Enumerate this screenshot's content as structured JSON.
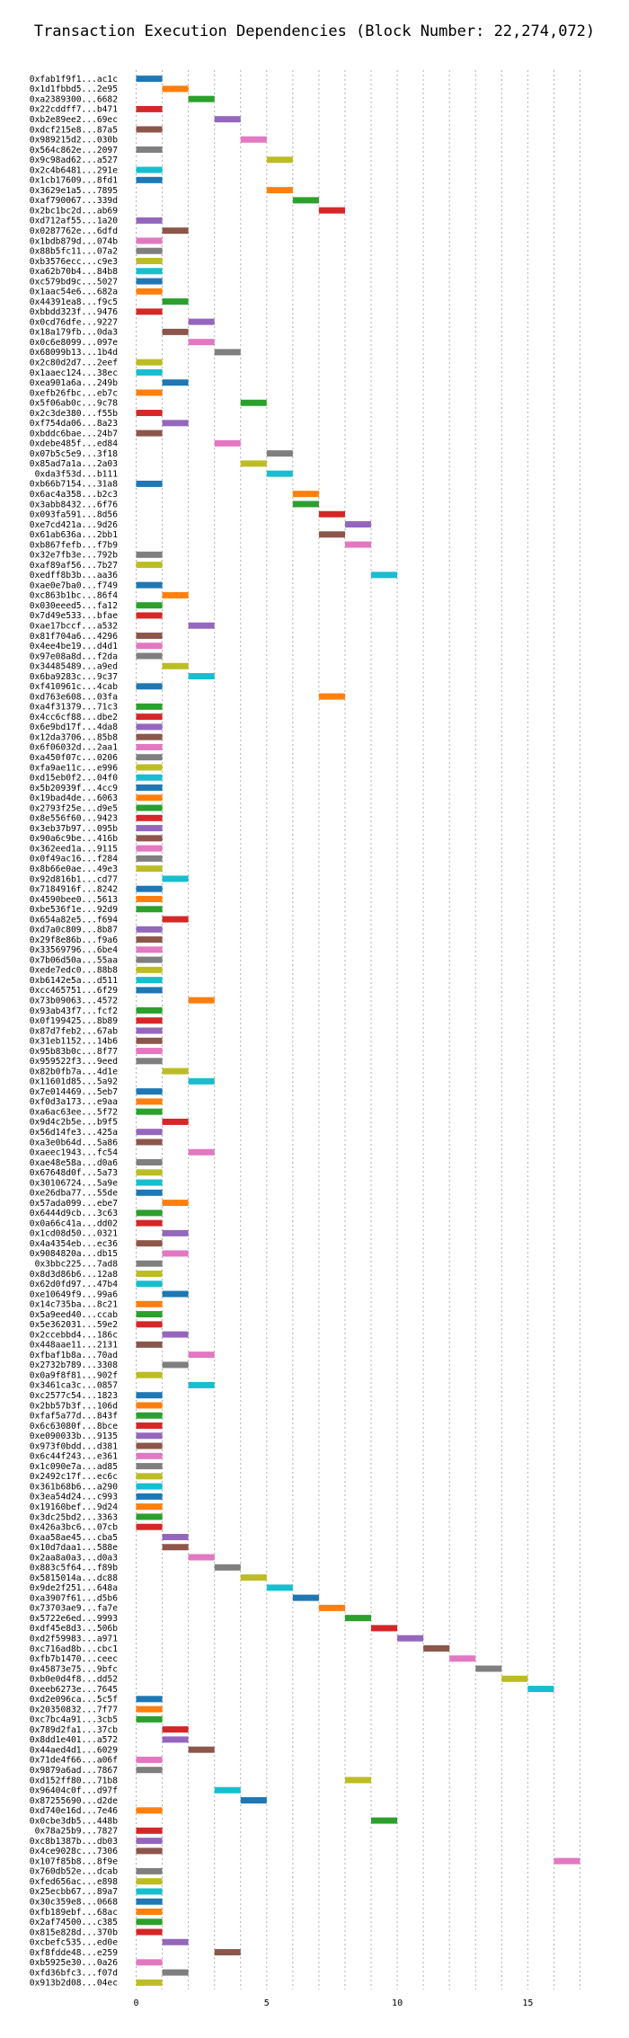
{
  "chart_data": {
    "type": "bar",
    "title": "Transaction Execution Dependencies (Block Number: 22,274,072)",
    "xlabel": "",
    "ylabel": "",
    "xlim": [
      -0.5,
      17.5
    ],
    "xticks": [
      0,
      5,
      10,
      15
    ],
    "grid": true,
    "palette": [
      "#1f77b4",
      "#ff7f0e",
      "#2ca02c",
      "#d62728",
      "#9467bd",
      "#8c564b",
      "#e377c2",
      "#7f7f7f",
      "#bcbd22",
      "#17becf"
    ],
    "transactions": [
      {
        "label": "0xfab1f9f1...ac1c",
        "start": 0
      },
      {
        "label": "0x1d1fbbd5...2e95",
        "start": 1
      },
      {
        "label": "0xa2389300...6682",
        "start": 2
      },
      {
        "label": "0x22cddff7...b471",
        "start": 0
      },
      {
        "label": "0xb2e89ee2...69ec",
        "start": 3
      },
      {
        "label": "0xdcf215e8...87a5",
        "start": 0
      },
      {
        "label": "0x989215d2...030b",
        "start": 4
      },
      {
        "label": "0x564c862e...2097",
        "start": 0
      },
      {
        "label": "0x9c98ad62...a527",
        "start": 5
      },
      {
        "label": "0x2c4b6481...291e",
        "start": 0
      },
      {
        "label": "0x1cb17609...8fd1",
        "start": 0
      },
      {
        "label": "0x3629e1a5...7895",
        "start": 5
      },
      {
        "label": "0xaf790067...339d",
        "start": 6
      },
      {
        "label": "0x2bc1bc2d...ab69",
        "start": 7
      },
      {
        "label": "0xd712af55...1a20",
        "start": 0
      },
      {
        "label": "0x0287762e...6dfd",
        "start": 1
      },
      {
        "label": "0x1bdb879d...074b",
        "start": 0
      },
      {
        "label": "0x88b5fc11...07a2",
        "start": 0
      },
      {
        "label": "0xb3576ecc...c9e3",
        "start": 0
      },
      {
        "label": "0xa62b70b4...84b8",
        "start": 0
      },
      {
        "label": "0xc579bd9c...5027",
        "start": 0
      },
      {
        "label": "0x1aac54e6...682a",
        "start": 0
      },
      {
        "label": "0x44391ea8...f9c5",
        "start": 1
      },
      {
        "label": "0xbbdd323f...9476",
        "start": 0
      },
      {
        "label": "0x0cd76dfe...9227",
        "start": 2
      },
      {
        "label": "0x18a179fb...0da3",
        "start": 1
      },
      {
        "label": "0x0c6e8099...097e",
        "start": 2
      },
      {
        "label": "0x68099b13...1b4d",
        "start": 3
      },
      {
        "label": "0x2c80d2d7...2eef",
        "start": 0
      },
      {
        "label": "0x1aaec124...38ec",
        "start": 0
      },
      {
        "label": "0xea901a6a...249b",
        "start": 1
      },
      {
        "label": "0xefb26fbc...eb7c",
        "start": 0
      },
      {
        "label": "0x5f06ab0c...9c78",
        "start": 4
      },
      {
        "label": "0x2c3de380...f55b",
        "start": 0
      },
      {
        "label": "0xf754da06...8a23",
        "start": 1
      },
      {
        "label": "0xbddc6bae...24b7",
        "start": 0
      },
      {
        "label": "0xdebe485f...ed84",
        "start": 3
      },
      {
        "label": "0x07b5c5e9...3f18",
        "start": 5
      },
      {
        "label": "0x85ad7a1a...2a03",
        "start": 4
      },
      {
        "label": "0xda3f53d...b111",
        "start": 5
      },
      {
        "label": "0xb66b7154...31a8",
        "start": 0
      },
      {
        "label": "0x6ac4a358...b2c3",
        "start": 6
      },
      {
        "label": "0x3abb8432...6f76",
        "start": 6
      },
      {
        "label": "0x093fa591...8d56",
        "start": 7
      },
      {
        "label": "0xe7cd421a...9d26",
        "start": 8
      },
      {
        "label": "0x61ab636a...2bb1",
        "start": 7
      },
      {
        "label": "0xb867fefb...f7b9",
        "start": 8
      },
      {
        "label": "0x32e7fb3e...792b",
        "start": 0
      },
      {
        "label": "0xaf89af56...7b27",
        "start": 0
      },
      {
        "label": "0xedff8b3b...aa36",
        "start": 9
      },
      {
        "label": "0xae0e7ba0...f749",
        "start": 0
      },
      {
        "label": "0xc863b1bc...86f4",
        "start": 1
      },
      {
        "label": "0x030eeed5...fa12",
        "start": 0
      },
      {
        "label": "0x7d49e533...bfae",
        "start": 0
      },
      {
        "label": "0xae17bccf...a532",
        "start": 2
      },
      {
        "label": "0x81f704a6...4296",
        "start": 0
      },
      {
        "label": "0x4ee4be19...d4d1",
        "start": 0
      },
      {
        "label": "0x97e08a8d...f2da",
        "start": 0
      },
      {
        "label": "0x34485489...a9ed",
        "start": 1
      },
      {
        "label": "0x6ba9283c...9c37",
        "start": 2
      },
      {
        "label": "0xf410961c...4cab",
        "start": 0
      },
      {
        "label": "0xd763e608...03fa",
        "start": 7
      },
      {
        "label": "0xa4f31379...71c3",
        "start": 0
      },
      {
        "label": "0x4cc6cf88...dbe2",
        "start": 0
      },
      {
        "label": "0x6e9bd17f...4da8",
        "start": 0
      },
      {
        "label": "0x12da3706...85b8",
        "start": 0
      },
      {
        "label": "0x6f06032d...2aa1",
        "start": 0
      },
      {
        "label": "0xa450f07c...0206",
        "start": 0
      },
      {
        "label": "0xfa9ae11c...e996",
        "start": 0
      },
      {
        "label": "0xd15eb0f2...04f0",
        "start": 0
      },
      {
        "label": "0x5b20939f...4cc9",
        "start": 0
      },
      {
        "label": "0x19bad4de...6063",
        "start": 0
      },
      {
        "label": "0x2793f25e...d9e5",
        "start": 0
      },
      {
        "label": "0x8e556f60...9423",
        "start": 0
      },
      {
        "label": "0x3eb37b97...095b",
        "start": 0
      },
      {
        "label": "0x90a6c9be...416b",
        "start": 0
      },
      {
        "label": "0x362eed1a...9115",
        "start": 0
      },
      {
        "label": "0x0f49ac16...f284",
        "start": 0
      },
      {
        "label": "0x8b66e0ae...49e3",
        "start": 0
      },
      {
        "label": "0x92d816b1...cd77",
        "start": 1
      },
      {
        "label": "0x7184916f...8242",
        "start": 0
      },
      {
        "label": "0x4590bee0...5613",
        "start": 0
      },
      {
        "label": "0xbe536f1e...92d9",
        "start": 0
      },
      {
        "label": "0x654a82e5...f694",
        "start": 1
      },
      {
        "label": "0xd7a0c809...8b87",
        "start": 0
      },
      {
        "label": "0x29f8e86b...f9a6",
        "start": 0
      },
      {
        "label": "0x33569796...6be4",
        "start": 0
      },
      {
        "label": "0x7b06d50a...55aa",
        "start": 0
      },
      {
        "label": "0xede7edc0...88b8",
        "start": 0
      },
      {
        "label": "0xb6142e5a...d511",
        "start": 0
      },
      {
        "label": "0xcc465751...6f29",
        "start": 0
      },
      {
        "label": "0x73b09063...4572",
        "start": 2
      },
      {
        "label": "0x93ab43f7...fcf2",
        "start": 0
      },
      {
        "label": "0x0f199425...8b89",
        "start": 0
      },
      {
        "label": "0x87d7feb2...67ab",
        "start": 0
      },
      {
        "label": "0x31eb1152...14b6",
        "start": 0
      },
      {
        "label": "0x95b83b0c...8f77",
        "start": 0
      },
      {
        "label": "0x959522f3...9eed",
        "start": 0
      },
      {
        "label": "0x82b0fb7a...4d1e",
        "start": 1
      },
      {
        "label": "0x11601d85...5a92",
        "start": 2
      },
      {
        "label": "0x7e014469...5eb7",
        "start": 0
      },
      {
        "label": "0xf0d3a173...e9aa",
        "start": 0
      },
      {
        "label": "0xa6ac63ee...5f72",
        "start": 0
      },
      {
        "label": "0x9d4c2b5e...b9f5",
        "start": 1
      },
      {
        "label": "0x56d14fe3...425a",
        "start": 0
      },
      {
        "label": "0xa3e0b64d...5a86",
        "start": 0
      },
      {
        "label": "0xaeec1943...fc54",
        "start": 2
      },
      {
        "label": "0xae48e58a...d0a6",
        "start": 0
      },
      {
        "label": "0x67648d0f...5a73",
        "start": 0
      },
      {
        "label": "0x30106724...5a9e",
        "start": 0
      },
      {
        "label": "0xe26dba77...55de",
        "start": 0
      },
      {
        "label": "0x57ada099...ebe7",
        "start": 1
      },
      {
        "label": "0x6444d9cb...3c63",
        "start": 0
      },
      {
        "label": "0x0a66c41a...dd02",
        "start": 0
      },
      {
        "label": "0x1cd08d50...0321",
        "start": 1
      },
      {
        "label": "0x4a4354eb...ec36",
        "start": 0
      },
      {
        "label": "0x9084820a...db15",
        "start": 1
      },
      {
        "label": "0x3bbc225...7ad8",
        "start": 0
      },
      {
        "label": "0x8d3d86b6...12a8",
        "start": 0
      },
      {
        "label": "0x62d0fd97...47b4",
        "start": 0
      },
      {
        "label": "0xe10649f9...99a6",
        "start": 1
      },
      {
        "label": "0x14c735ba...8c21",
        "start": 0
      },
      {
        "label": "0x5a9eed40...ccab",
        "start": 0
      },
      {
        "label": "0x5e362031...59e2",
        "start": 0
      },
      {
        "label": "0x2ccebbd4...186c",
        "start": 1
      },
      {
        "label": "0x448aae11...2131",
        "start": 0
      },
      {
        "label": "0xfbaf1b8a...70ad",
        "start": 2
      },
      {
        "label": "0x2732b789...3308",
        "start": 1
      },
      {
        "label": "0x0a9f8f81...902f",
        "start": 0
      },
      {
        "label": "0x3461ca3c...0857",
        "start": 2
      },
      {
        "label": "0xc2577c54...1823",
        "start": 0
      },
      {
        "label": "0x2bb57b3f...106d",
        "start": 0
      },
      {
        "label": "0xfaf5a77d...843f",
        "start": 0
      },
      {
        "label": "0x6c63080f...8bce",
        "start": 0
      },
      {
        "label": "0xe090033b...9135",
        "start": 0
      },
      {
        "label": "0x973f0bdd...d381",
        "start": 0
      },
      {
        "label": "0x6c44f243...e361",
        "start": 0
      },
      {
        "label": "0x1c090e7a...ad85",
        "start": 0
      },
      {
        "label": "0x2492c17f...ec6c",
        "start": 0
      },
      {
        "label": "0x361b68b6...a290",
        "start": 0
      },
      {
        "label": "0x3ea54d24...c993",
        "start": 0
      },
      {
        "label": "0x19160bef...9d24",
        "start": 0
      },
      {
        "label": "0x3dc25bd2...3363",
        "start": 0
      },
      {
        "label": "0x426a3bc6...07cb",
        "start": 0
      },
      {
        "label": "0xaa58ae45...cba5",
        "start": 1
      },
      {
        "label": "0x10d7daa1...588e",
        "start": 1
      },
      {
        "label": "0x2aa8a0a3...d0a3",
        "start": 2
      },
      {
        "label": "0x883c5f64...f89b",
        "start": 3
      },
      {
        "label": "0x5815014a...dc88",
        "start": 4
      },
      {
        "label": "0x9de2f251...648a",
        "start": 5
      },
      {
        "label": "0xa3907f61...d5b6",
        "start": 6
      },
      {
        "label": "0x73703ae9...fa7e",
        "start": 7
      },
      {
        "label": "0x5722e6ed...9993",
        "start": 8
      },
      {
        "label": "0xdf45e8d3...506b",
        "start": 9
      },
      {
        "label": "0xd2f59983...a971",
        "start": 10
      },
      {
        "label": "0xc716ad8b...cbc1",
        "start": 11
      },
      {
        "label": "0xfb7b1470...ceec",
        "start": 12
      },
      {
        "label": "0x45873e75...9bfc",
        "start": 13
      },
      {
        "label": "0xb0e0d4f8...dd52",
        "start": 14
      },
      {
        "label": "0xeeb6273e...7645",
        "start": 15
      },
      {
        "label": "0xd2e096ca...5c5f",
        "start": 0
      },
      {
        "label": "0x20350832...7f77",
        "start": 0
      },
      {
        "label": "0xc7bc4a91...3cb5",
        "start": 0
      },
      {
        "label": "0x789d2fa1...37cb",
        "start": 1
      },
      {
        "label": "0x8dd1e401...a572",
        "start": 1
      },
      {
        "label": "0x44aed4d1...6029",
        "start": 2
      },
      {
        "label": "0x71de4f66...a06f",
        "start": 0
      },
      {
        "label": "0x9879a6ad...7867",
        "start": 0
      },
      {
        "label": "0xd152ff80...71b8",
        "start": 8
      },
      {
        "label": "0x96404c0f...d97f",
        "start": 3
      },
      {
        "label": "0x87255690...d2de",
        "start": 4
      },
      {
        "label": "0xd740e16d...7e46",
        "start": 0
      },
      {
        "label": "0x0cbe3db5...448b",
        "start": 9
      },
      {
        "label": "0x78a25b9...7827",
        "start": 0
      },
      {
        "label": "0xc8b1387b...db03",
        "start": 0
      },
      {
        "label": "0x4ce9028c...7306",
        "start": 0
      },
      {
        "label": "0x107f85b8...8f9e",
        "start": 16
      },
      {
        "label": "0x760db52e...dcab",
        "start": 0
      },
      {
        "label": "0xfed656ac...e898",
        "start": 0
      },
      {
        "label": "0x25ecbb67...89a7",
        "start": 0
      },
      {
        "label": "0x30c359e8...0668",
        "start": 0
      },
      {
        "label": "0xfb189ebf...68ac",
        "start": 0
      },
      {
        "label": "0x2af74500...c385",
        "start": 0
      },
      {
        "label": "0x815e828d...370b",
        "start": 0
      },
      {
        "label": "0xcbefc535...ed0e",
        "start": 1
      },
      {
        "label": "0xf8fdde48...e259",
        "start": 3
      },
      {
        "label": "0xb5925e30...0a26",
        "start": 0
      },
      {
        "label": "0xfd36bfc3...f07d",
        "start": 1
      },
      {
        "label": "0x913b2d08...04ec",
        "start": 0
      }
    ]
  }
}
